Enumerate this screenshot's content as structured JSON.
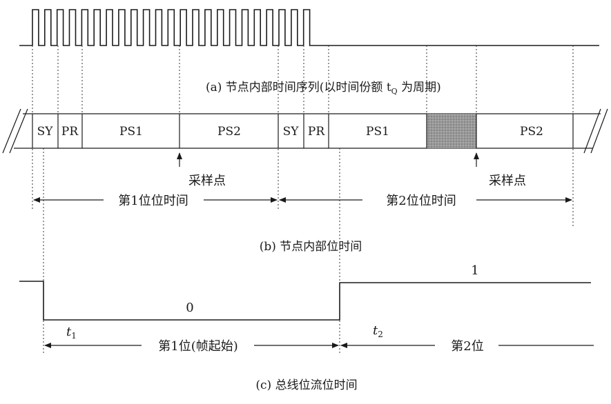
{
  "clock": {
    "caption": "(a) 节点内部时间序列(以时间份额 t",
    "caption_sub": "Q",
    "caption_tail": " 为周期)"
  },
  "bit_time": {
    "caption": "(b) 节点内部位时间",
    "segments_bit1": [
      {
        "label": "SY",
        "shaded": false
      },
      {
        "label": "PR",
        "shaded": false
      },
      {
        "label": "PS1",
        "shaded": false
      },
      {
        "label": "PS2",
        "shaded": false
      }
    ],
    "segments_bit2": [
      {
        "label": "SY",
        "shaded": false
      },
      {
        "label": "PR",
        "shaded": false
      },
      {
        "label": "PS1",
        "shaded": false
      },
      {
        "label": "",
        "shaded": true
      },
      {
        "label": "PS2",
        "shaded": false
      }
    ],
    "sample_point_1": "采样点",
    "sample_point_2": "采样点",
    "bit1_time": "第1位位时间",
    "bit2_time": "第2位位时间"
  },
  "bus": {
    "caption": "(c) 总线位流位时间",
    "level_low": "0",
    "level_high": "1",
    "t1": "t",
    "t1_sub": "1",
    "t2": "t",
    "t2_sub": "2",
    "bit1_label": "第1位(帧起始)",
    "bit2_label": "第2位"
  }
}
